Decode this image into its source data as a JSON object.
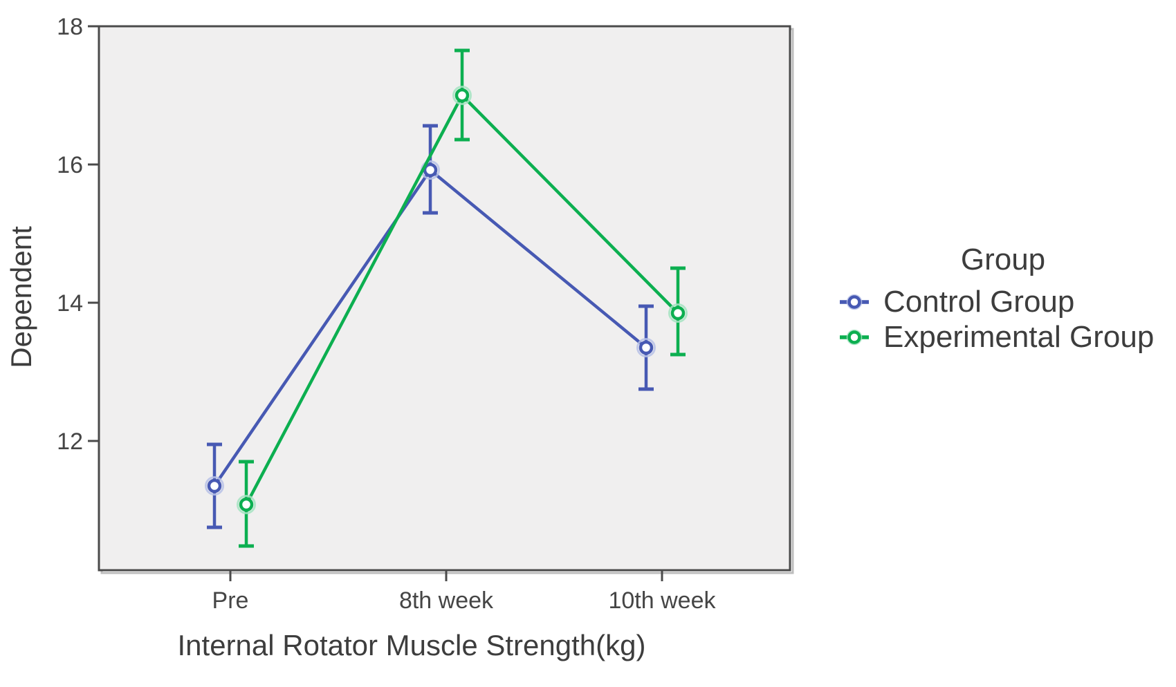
{
  "chart_data": {
    "type": "line",
    "title": "",
    "xlabel": "Internal Rotator Muscle Strength(kg)",
    "ylabel": "Dependent",
    "categories": [
      "Pre",
      "8th week",
      "10th week"
    ],
    "y_ticks": [
      12,
      14,
      16,
      18
    ],
    "ylim": [
      10.13,
      18
    ],
    "grid": false,
    "error_bars": true,
    "marker": "open-circle",
    "legend": {
      "title": "Group",
      "position": "right"
    },
    "series": [
      {
        "name": "Control Group",
        "color": "#4759B3",
        "halo_color": "#B7C1E6",
        "values": [
          11.35,
          15.92,
          13.35
        ],
        "ci_low": [
          10.75,
          15.3,
          12.75
        ],
        "ci_high": [
          11.95,
          16.56,
          13.95
        ]
      },
      {
        "name": "Experimental Group",
        "color": "#0CAF50",
        "halo_color": "#A5E3C1",
        "values": [
          11.08,
          17.0,
          13.85
        ],
        "ci_low": [
          10.48,
          16.36,
          13.25
        ],
        "ci_high": [
          11.7,
          17.65,
          14.5
        ]
      }
    ],
    "colors": {
      "plot_bg": "#F0EFEF",
      "frame": "#4A4A4A",
      "frame_shadow": "#BDBDBD",
      "tick_text": "#454545",
      "marker_fill": "#FFFFFF"
    }
  }
}
